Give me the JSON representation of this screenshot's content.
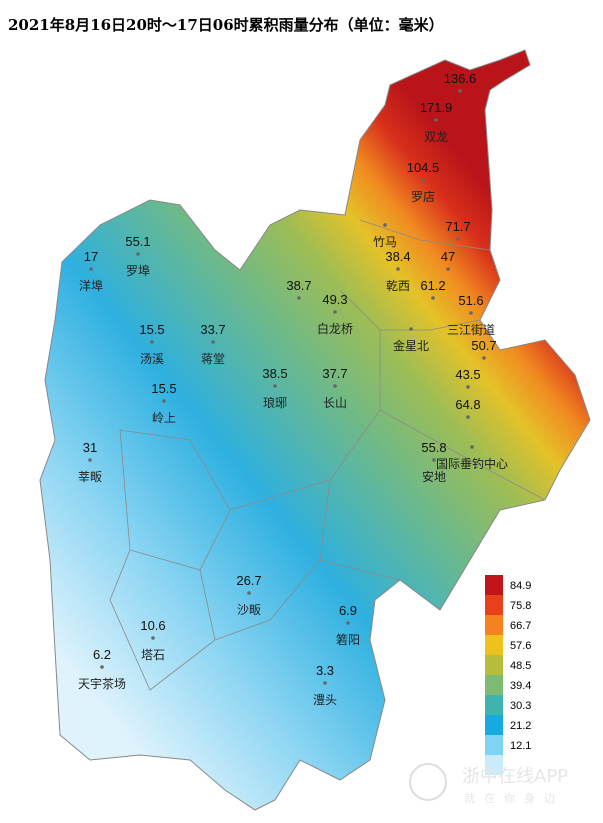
{
  "title": "2021年8月16日20时～17日06时累积雨量分布（单位：毫米）",
  "stations": [
    {
      "value": 136.6
    },
    {
      "value": 171.9,
      "name": "双龙"
    },
    {
      "value": 104.5,
      "name": "罗店"
    },
    {
      "name": "竹马"
    },
    {
      "value": 71.7
    },
    {
      "value": 47
    },
    {
      "value": 38.4,
      "name": "乾西"
    },
    {
      "value": 61.2
    },
    {
      "value": 51.6,
      "name": "三江街道"
    },
    {
      "name": "金星北"
    },
    {
      "value": 50.7
    },
    {
      "value": 43.5
    },
    {
      "value": 64.8
    },
    {
      "name": "国际垂钓中心"
    },
    {
      "value": 55.8,
      "name": "安地"
    },
    {
      "value": 38.7
    },
    {
      "value": 49.3,
      "name": "白龙桥"
    },
    {
      "value": 33.7,
      "name": "蒋堂"
    },
    {
      "value": 15.5,
      "name": "汤溪"
    },
    {
      "value": 15.5,
      "name": "岭上"
    },
    {
      "value": 38.5,
      "name": "琅琊"
    },
    {
      "value": 37.7,
      "name": "长山"
    },
    {
      "value": 55.1,
      "name": "罗埠"
    },
    {
      "value": 17,
      "name": "洋埠"
    },
    {
      "value": 31,
      "name": "莘畈"
    },
    {
      "value": 26.7,
      "name": "沙畈"
    },
    {
      "value": 10.6,
      "name": "塔石"
    },
    {
      "value": 6.9,
      "name": "箬阳"
    },
    {
      "value": 6.2,
      "name": "天宇茶场"
    },
    {
      "value": 3.3,
      "name": "澧头"
    }
  ],
  "legend": {
    "values": [
      84.9,
      75.8,
      66.7,
      57.6,
      48.5,
      39.4,
      30.3,
      21.2,
      12.1
    ],
    "colors": [
      "#c0161b",
      "#e8401a",
      "#f58220",
      "#eec21c",
      "#b5bd3a",
      "#7dba72",
      "#3fb3b0",
      "#16aae0",
      "#7fd3f5",
      "#c8ecfb"
    ]
  },
  "watermark": {
    "brand": "浙中在线APP",
    "slogan": "就在你身边"
  }
}
